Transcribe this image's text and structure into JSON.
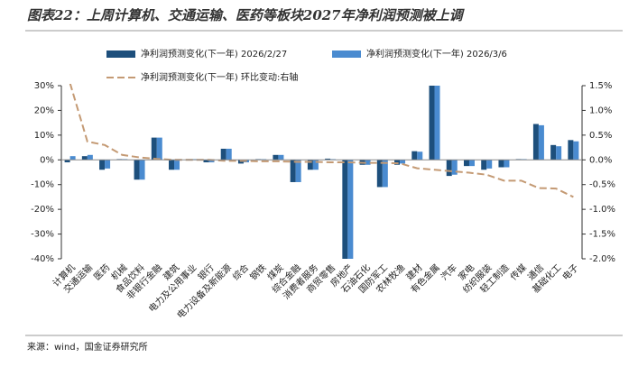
{
  "chart_data": {
    "type": "bar_line",
    "title": "图表22：上周计算机、交通运输、医药等板块2027年净利润预测被上调",
    "source": "来源：wind，国金证券研究所",
    "categories": [
      "计算机",
      "交通运输",
      "医药",
      "机械",
      "食品饮料",
      "非银行金融",
      "建筑",
      "电力及公用事业",
      "银行",
      "电力设备及新能源",
      "综合",
      "钢铁",
      "煤炭",
      "综合金融",
      "消费者服务",
      "商贸零售",
      "房地产",
      "石油石化",
      "国防军工",
      "农林牧渔",
      "建材",
      "有色金属",
      "汽车",
      "家电",
      "纺织服装",
      "轻工制造",
      "传媒",
      "通信",
      "基础化工",
      "电子"
    ],
    "series": [
      {
        "name": "净利润预测变化(下一年) 2026/2/27",
        "type": "bar",
        "color": "#1d4f7c",
        "values": [
          -1,
          1.5,
          -4,
          0.3,
          -8,
          9,
          -4,
          0.3,
          -1,
          4.5,
          -1.5,
          0.3,
          2,
          -9,
          -4,
          0.5,
          -40,
          -2,
          -11,
          -2,
          3.5,
          30,
          -6.5,
          -2.5,
          -4,
          -3,
          0.3,
          14.5,
          6,
          8
        ]
      },
      {
        "name": "净利润预测变化(下一年) 2026/3/6",
        "type": "bar",
        "color": "#4a8bd0",
        "values": [
          1.5,
          2,
          -3.5,
          0.3,
          -8,
          9,
          -4,
          0.3,
          -1,
          4.5,
          -1,
          0.3,
          2,
          -9,
          -4,
          0.3,
          -40,
          -2,
          -11,
          -1.5,
          3.3,
          30,
          -6,
          -2.5,
          -3.5,
          -3,
          0.3,
          14,
          5.5,
          7.5
        ]
      },
      {
        "name": "净利润预测变化(下一年) 环比变动:右轴",
        "type": "line",
        "axis": "y2",
        "color": "#c49a74",
        "dashed": true,
        "values": [
          1.55,
          0.37,
          0.3,
          0.1,
          0.05,
          0.02,
          0,
          0,
          0,
          -0.02,
          -0.02,
          -0.03,
          -0.03,
          -0.04,
          -0.04,
          -0.05,
          -0.05,
          -0.06,
          -0.06,
          -0.07,
          -0.17,
          -0.2,
          -0.23,
          -0.26,
          -0.3,
          -0.42,
          -0.42,
          -0.57,
          -0.58,
          -0.75
        ]
      }
    ],
    "ylim": [
      -40,
      30
    ],
    "yticks": [
      {
        "value": 30,
        "label": "30%"
      },
      {
        "value": 20,
        "label": "20%"
      },
      {
        "value": 10,
        "label": "10%"
      },
      {
        "value": 0,
        "label": "0%"
      },
      {
        "value": -10,
        "label": "-10%"
      },
      {
        "value": -20,
        "label": "-20%"
      },
      {
        "value": -30,
        "label": "-30%"
      },
      {
        "value": -40,
        "label": "-40%"
      }
    ],
    "y2lim": [
      -2,
      1.5
    ],
    "y2ticks": [
      {
        "value": 1.5,
        "label": "1.5%"
      },
      {
        "value": 1,
        "label": "1.0%"
      },
      {
        "value": 0.5,
        "label": "0.5%"
      },
      {
        "value": 0,
        "label": "0.0%"
      },
      {
        "value": -0.5,
        "label": "-0.5%"
      },
      {
        "value": -1,
        "label": "-1.0%"
      },
      {
        "value": -1.5,
        "label": "-1.5%"
      },
      {
        "value": -2,
        "label": "-2.0%"
      }
    ]
  }
}
